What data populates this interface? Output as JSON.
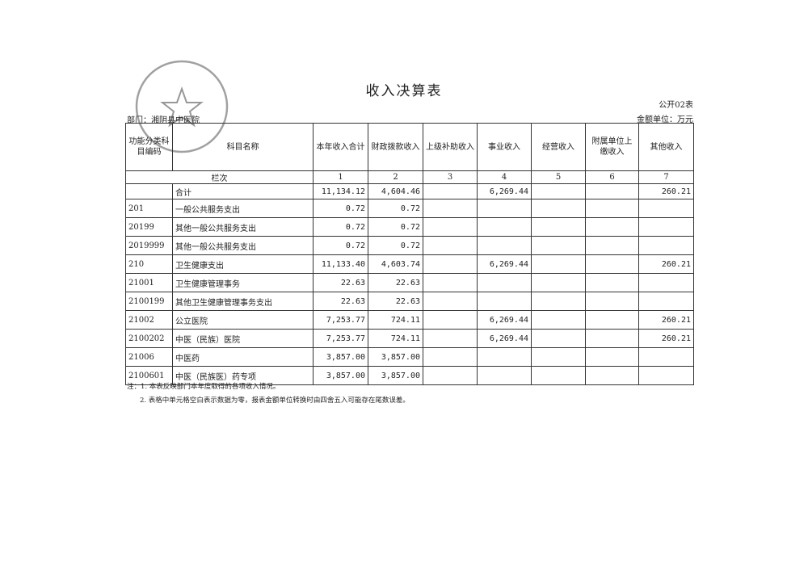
{
  "title": "收入决算表",
  "form_no": "公开02表",
  "unit": "金额单位：万元",
  "department": "部门：湘阴县中医院",
  "stamp_text": "湘阴县中医院",
  "headers": [
    "功能分类科目编码",
    "科目名称",
    "本年收入合计",
    "财政拨款收入",
    "上级补助收入",
    "事业收入",
    "经营收入",
    "附属单位上缴收入",
    "其他收入"
  ],
  "line_label": "栏次",
  "line_numbers": [
    "1",
    "2",
    "3",
    "4",
    "5",
    "6",
    "7"
  ],
  "rows": [
    {
      "code": "",
      "name": "合计",
      "v": [
        "11,134.12",
        "4,604.46",
        "",
        "6,269.44",
        "",
        "",
        "260.21"
      ]
    },
    {
      "code": "201",
      "name": "一般公共服务支出",
      "v": [
        "0.72",
        "0.72",
        "",
        "",
        "",
        "",
        ""
      ]
    },
    {
      "code": "20199",
      "name": "其他一般公共服务支出",
      "v": [
        "0.72",
        "0.72",
        "",
        "",
        "",
        "",
        ""
      ]
    },
    {
      "code": "2019999",
      "name": "其他一般公共服务支出",
      "v": [
        "0.72",
        "0.72",
        "",
        "",
        "",
        "",
        ""
      ]
    },
    {
      "code": "210",
      "name": "卫生健康支出",
      "v": [
        "11,133.40",
        "4,603.74",
        "",
        "6,269.44",
        "",
        "",
        "260.21"
      ]
    },
    {
      "code": "21001",
      "name": "卫生健康管理事务",
      "v": [
        "22.63",
        "22.63",
        "",
        "",
        "",
        "",
        ""
      ]
    },
    {
      "code": "2100199",
      "name": "其他卫生健康管理事务支出",
      "v": [
        "22.63",
        "22.63",
        "",
        "",
        "",
        "",
        ""
      ]
    },
    {
      "code": "21002",
      "name": "公立医院",
      "v": [
        "7,253.77",
        "724.11",
        "",
        "6,269.44",
        "",
        "",
        "260.21"
      ]
    },
    {
      "code": "2100202",
      "name": "中医（民族）医院",
      "v": [
        "7,253.77",
        "724.11",
        "",
        "6,269.44",
        "",
        "",
        "260.21"
      ]
    },
    {
      "code": "21006",
      "name": "中医药",
      "v": [
        "3,857.00",
        "3,857.00",
        "",
        "",
        "",
        "",
        ""
      ]
    },
    {
      "code": "2100601",
      "name": "中医（民族医）药专项",
      "v": [
        "3,857.00",
        "3,857.00",
        "",
        "",
        "",
        "",
        ""
      ]
    }
  ],
  "notes": [
    "注：1. 本表反映部门本年度取得的各项收入情况。",
    "2. 表格中单元格空白表示数据为零，报表金额单位转换时由四舍五入可能存在尾数误差。"
  ]
}
